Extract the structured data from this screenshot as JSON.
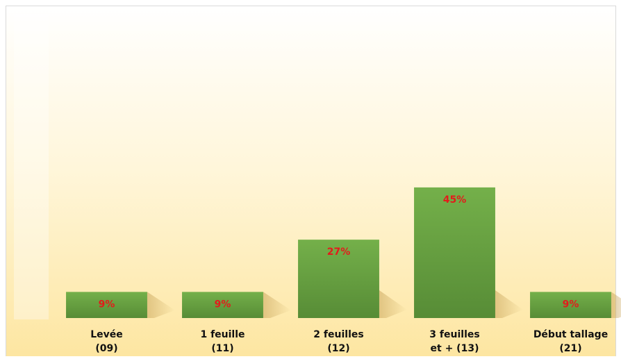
{
  "chart_data": {
    "type": "bar",
    "categories": [
      "Levée\n(09)",
      "1 feuille\n(11)",
      "2 feuilles\n(12)",
      "3 feuilles\net + (13)",
      "Début tallage\n(21)"
    ],
    "values": [
      9,
      9,
      27,
      45,
      9
    ],
    "value_labels": [
      "9%",
      "9%",
      "27%",
      "45%",
      "9%"
    ],
    "color": "#6aa544",
    "label_color": "#e31b1b",
    "ylim": [
      0,
      100
    ]
  }
}
